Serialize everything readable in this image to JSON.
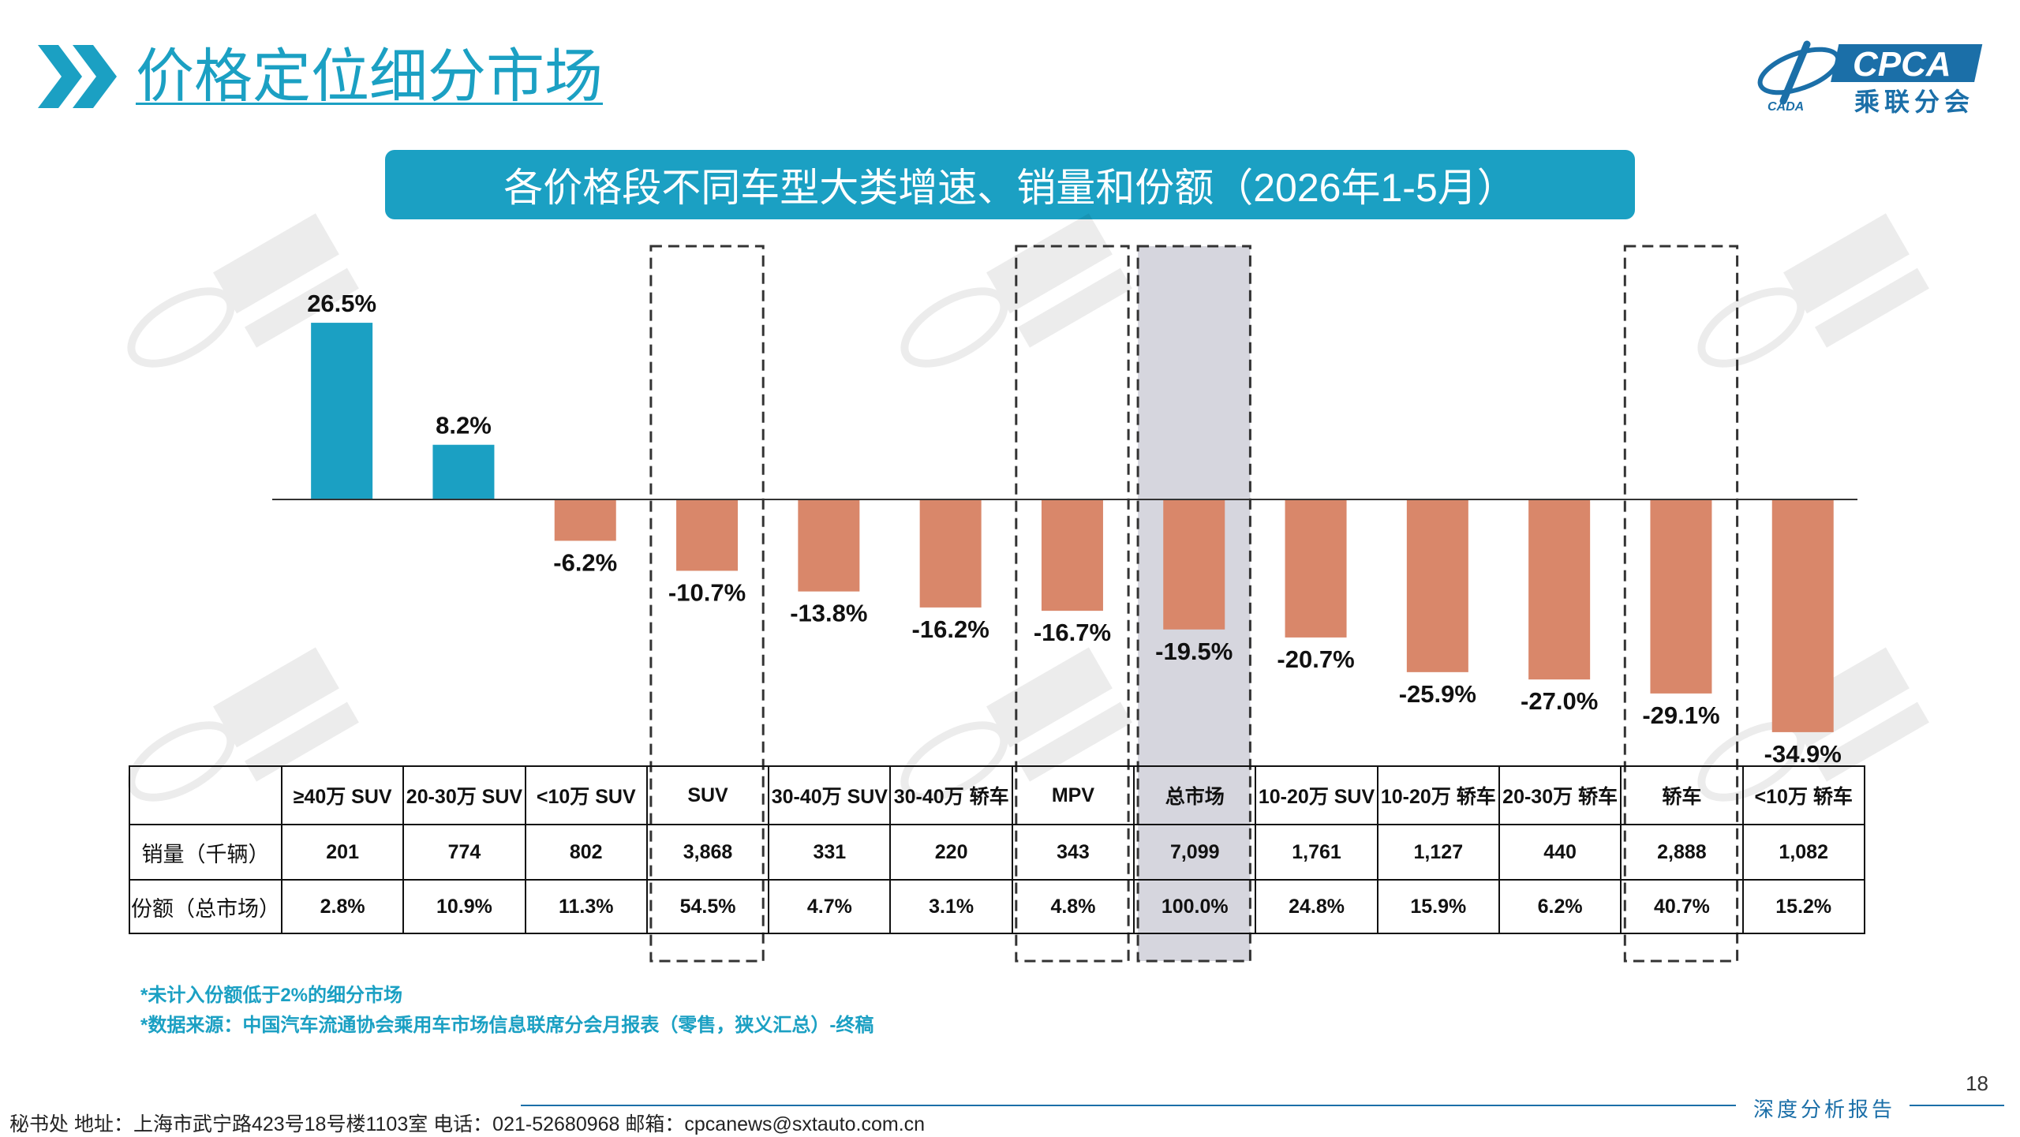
{
  "header": {
    "title": "价格定位细分市场",
    "logo": {
      "en": "CPCA",
      "cn": "乘联分会",
      "sub": "CADA"
    }
  },
  "banner_title": "各价格段不同车型大类增速、销量和份额（2026年1-5月）",
  "chart_data": {
    "type": "bar",
    "title": "各价格段不同车型大类增速、销量和份额（2026年1-5月）",
    "categories": [
      "≥40万 SUV",
      "20-30万 SUV",
      "<10万 SUV",
      "SUV",
      "30-40万 SUV",
      "30-40万 轿车",
      "MPV",
      "总市场",
      "10-20万 SUV",
      "10-20万 轿车",
      "20-30万 轿车",
      "轿车",
      "<10万 轿车"
    ],
    "series": [
      {
        "values": [
          26.5,
          8.2,
          -6.2,
          -10.7,
          -13.8,
          -16.2,
          -16.7,
          -19.5,
          -20.7,
          -25.9,
          -27.0,
          -29.1,
          -34.9
        ]
      }
    ],
    "value_labels": [
      "26.5%",
      "8.2%",
      "-6.2%",
      "-10.7%",
      "-13.8%",
      "-16.2%",
      "-16.7%",
      "-19.5%",
      "-20.7%",
      "-25.9%",
      "-27.0%",
      "-29.1%",
      "-34.9%"
    ],
    "colors": {
      "positive": "#1ba0c3",
      "negative": "#d9876a"
    },
    "highlighted_dashed": [
      "SUV",
      "MPV",
      "轿车"
    ],
    "highlighted_shaded": [
      "总市场"
    ],
    "ylim": [
      -38,
      30
    ],
    "grid": false,
    "legend": "none"
  },
  "table": {
    "rows": [
      {
        "label": "销量（千辆）",
        "values": [
          "201",
          "774",
          "802",
          "3,868",
          "331",
          "220",
          "343",
          "7,099",
          "1,761",
          "1,127",
          "440",
          "2,888",
          "1,082"
        ]
      },
      {
        "label": "份额（总市场）",
        "values": [
          "2.8%",
          "10.9%",
          "11.3%",
          "54.5%",
          "4.7%",
          "3.1%",
          "4.8%",
          "100.0%",
          "24.8%",
          "15.9%",
          "6.2%",
          "40.7%",
          "15.2%"
        ]
      }
    ]
  },
  "notes": [
    "*未计入份额低于2%的细分市场",
    "*数据来源：中国汽车流通协会乘用车市场信息联席分会月报表（零售，狭义汇总）-终稿"
  ],
  "footer": {
    "page_number": "18",
    "tag": "深度分析报告",
    "contact": "秘书处   地址：上海市武宁路423号18号楼1103室   电话：021-52680968   邮箱：cpcanews@sxtauto.com.cn"
  },
  "colors": {
    "accent": "#1ba0c3",
    "negative_bar": "#d9876a",
    "shade": "#d6d6de",
    "footer_blue": "#1b6fa8"
  }
}
